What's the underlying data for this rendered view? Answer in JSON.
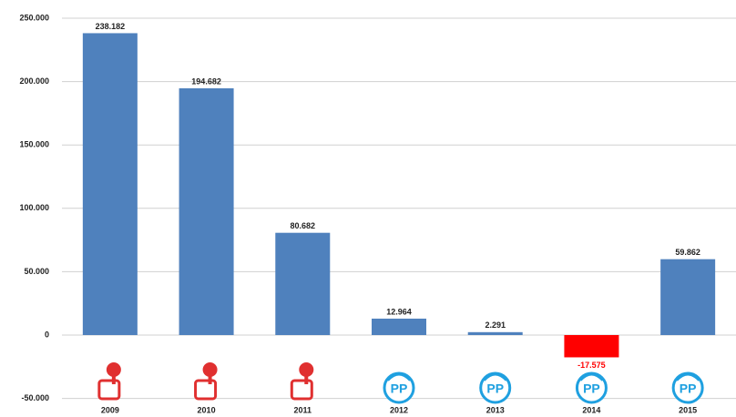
{
  "chart_data": {
    "type": "bar",
    "categories": [
      "2009",
      "2010",
      "2011",
      "2012",
      "2013",
      "2014",
      "2015"
    ],
    "values": [
      238182,
      194682,
      80682,
      12964,
      2291,
      -17575,
      59862
    ],
    "value_labels": [
      "238.182",
      "194.682",
      "80.682",
      "12.964",
      "2.291",
      "-17.575",
      "59.862"
    ],
    "colors": [
      "#4f81bd",
      "#4f81bd",
      "#4f81bd",
      "#4f81bd",
      "#4f81bd",
      "#ff0000",
      "#4f81bd"
    ],
    "logo_labels": [
      null,
      null,
      null,
      "PP",
      "PP",
      "PP",
      "PP"
    ],
    "ylim": [
      -50000,
      250000
    ],
    "yticks": [
      {
        "value": -50000,
        "label": "-50.000"
      },
      0,
      {
        "value": 50000,
        "label": "50.000"
      },
      {
        "value": 100000,
        "label": "100.000"
      },
      {
        "value": 150000,
        "label": "150.000"
      },
      {
        "value": 200000,
        "label": "200.000"
      },
      {
        "value": 250000,
        "label": "250.000"
      }
    ],
    "grid": true
  }
}
